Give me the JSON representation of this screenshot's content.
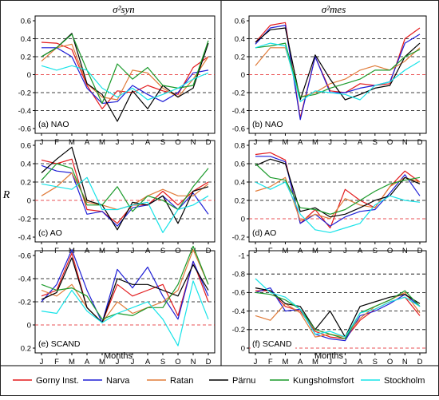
{
  "chart_data": {
    "type": "line",
    "column_titles": [
      "σ²syn",
      "σ²mes"
    ],
    "ylabel": "R",
    "xlabel": "Months",
    "months": [
      "J",
      "F",
      "M",
      "A",
      "M",
      "J",
      "J",
      "A",
      "S",
      "O",
      "N",
      "D"
    ],
    "legend": [
      {
        "name": "Gorny Inst.",
        "color": "#e31a1c"
      },
      {
        "name": "Narva",
        "color": "#1f1fd6"
      },
      {
        "name": "Ratan",
        "color": "#e07b39"
      },
      {
        "name": "Pärnu",
        "color": "#000000"
      },
      {
        "name": "Kungsholmsfort",
        "color": "#1a9a2a"
      },
      {
        "name": "Stockholm",
        "color": "#17e3e8"
      }
    ],
    "panels": [
      {
        "id": "a",
        "label": "(a) NAO",
        "ylim": [
          -0.6,
          0.6
        ],
        "ticks": [
          0.6,
          0.4,
          0.2,
          0,
          -0.2,
          -0.4,
          -0.6
        ],
        "tick_labels": [
          "0.6",
          "0.4",
          "0.2",
          "0",
          "-0.2",
          "-0.4",
          "-0.6"
        ],
        "invert": false,
        "series": [
          {
            "name": "Gorny Inst.",
            "values": [
              0.36,
              0.35,
              0.28,
              -0.12,
              -0.38,
              -0.18,
              -0.2,
              -0.12,
              -0.18,
              -0.22,
              0.08,
              0.2
            ]
          },
          {
            "name": "Narva",
            "values": [
              0.3,
              0.3,
              0.2,
              -0.15,
              -0.32,
              -0.3,
              -0.12,
              -0.22,
              -0.3,
              -0.2,
              0.02,
              0.05
            ]
          },
          {
            "name": "Ratan",
            "values": [
              0.15,
              0.3,
              0.34,
              -0.1,
              -0.25,
              -0.28,
              0.05,
              0.02,
              -0.15,
              -0.25,
              -0.05,
              0.2
            ]
          },
          {
            "name": "Pärnu",
            "values": [
              0.2,
              0.3,
              0.46,
              -0.1,
              -0.22,
              -0.52,
              -0.18,
              -0.38,
              -0.12,
              -0.25,
              -0.15,
              0.35
            ]
          },
          {
            "name": "Kungsholmsfort",
            "values": [
              0.2,
              0.3,
              0.45,
              0.05,
              -0.32,
              0.12,
              -0.05,
              0.08,
              -0.12,
              -0.15,
              -0.12,
              0.38
            ]
          },
          {
            "name": "Stockholm",
            "values": [
              0.1,
              0.05,
              0.1,
              0.05,
              -0.15,
              -0.25,
              -0.15,
              -0.28,
              -0.22,
              -0.15,
              -0.05,
              0.02
            ]
          }
        ]
      },
      {
        "id": "b",
        "label": "(b) NAO",
        "ylim": [
          -0.6,
          0.6
        ],
        "ticks": [
          0.6,
          0.4,
          0.2,
          0,
          -0.2,
          -0.4,
          -0.6
        ],
        "tick_labels": [
          "0.6",
          "0.4",
          "0.2",
          "0",
          "-0.2",
          "-0.4",
          "-0.6"
        ],
        "invert": false,
        "series": [
          {
            "name": "Gorny Inst.",
            "values": [
              0.36,
              0.55,
              0.58,
              -0.48,
              0.2,
              -0.18,
              -0.2,
              -0.1,
              -0.12,
              -0.1,
              0.4,
              0.52
            ]
          },
          {
            "name": "Narva",
            "values": [
              0.34,
              0.52,
              0.55,
              -0.5,
              0.2,
              -0.2,
              -0.2,
              -0.15,
              -0.12,
              -0.08,
              0.35,
              0.45
            ]
          },
          {
            "name": "Ratan",
            "values": [
              0.1,
              0.3,
              0.3,
              -0.25,
              -0.2,
              -0.1,
              -0.05,
              0.05,
              0.1,
              0.05,
              0.15,
              0.3
            ]
          },
          {
            "name": "Pärnu",
            "values": [
              0.36,
              0.5,
              0.52,
              -0.28,
              0.22,
              -0.05,
              -0.28,
              -0.22,
              -0.15,
              -0.12,
              0.2,
              0.35
            ]
          },
          {
            "name": "Kungsholmsfort",
            "values": [
              0.3,
              0.32,
              0.35,
              -0.25,
              -0.22,
              -0.15,
              -0.1,
              -0.05,
              0.05,
              0.05,
              0.2,
              0.28
            ]
          },
          {
            "name": "Stockholm",
            "values": [
              0.3,
              0.35,
              0.32,
              -0.3,
              -0.18,
              -0.2,
              -0.22,
              -0.28,
              -0.12,
              -0.08,
              0.05,
              0.15
            ]
          }
        ]
      },
      {
        "id": "c",
        "label": "(c) AO",
        "ylim": [
          -0.4,
          0.6
        ],
        "ticks": [
          0.6,
          0.4,
          0.2,
          0,
          -0.2,
          -0.4
        ],
        "tick_labels": [
          "0.6",
          "0.4",
          "0.2",
          "0",
          "-0.2",
          "-0.4"
        ],
        "invert": false,
        "series": [
          {
            "name": "Gorny Inst.",
            "values": [
              0.44,
              0.4,
              0.45,
              -0.1,
              -0.12,
              -0.25,
              -0.05,
              -0.05,
              0.1,
              -0.05,
              0.1,
              0.2
            ]
          },
          {
            "name": "Narva",
            "values": [
              0.38,
              0.32,
              0.3,
              -0.15,
              -0.12,
              -0.28,
              -0.08,
              -0.05,
              0.05,
              -0.1,
              0.08,
              -0.15
            ]
          },
          {
            "name": "Ratan",
            "values": [
              0.05,
              0.15,
              0.3,
              -0.02,
              -0.05,
              -0.1,
              -0.05,
              0.05,
              0.12,
              0.05,
              0.05,
              0.18
            ]
          },
          {
            "name": "Pärnu",
            "values": [
              0.3,
              0.45,
              0.58,
              0.0,
              -0.05,
              -0.32,
              -0.02,
              -0.05,
              0.05,
              -0.25,
              0.1,
              0.15
            ]
          },
          {
            "name": "Kungsholmsfort",
            "values": [
              0.22,
              0.4,
              0.35,
              -0.05,
              -0.05,
              0.15,
              -0.12,
              0.05,
              0.0,
              -0.1,
              0.15,
              0.35
            ]
          },
          {
            "name": "Stockholm",
            "values": [
              0.18,
              0.15,
              0.12,
              0.25,
              -0.1,
              -0.1,
              -0.05,
              -0.02,
              -0.35,
              -0.1,
              -0.05,
              0.05
            ]
          }
        ]
      },
      {
        "id": "d",
        "label": "(d) AO",
        "ylim": [
          -0.2,
          0.8
        ],
        "ticks": [
          0.8,
          0.6,
          0.4,
          0.2,
          0,
          -0.2
        ],
        "tick_labels": [
          "0.8",
          "0.6",
          "0.4",
          "0.2",
          "0",
          "-0.2"
        ],
        "invert": false,
        "series": [
          {
            "name": "Gorny Inst.",
            "values": [
              0.7,
              0.72,
              0.64,
              -0.05,
              0.1,
              -0.1,
              0.32,
              0.2,
              0.12,
              0.35,
              0.52,
              0.4
            ]
          },
          {
            "name": "Narva",
            "values": [
              0.68,
              0.68,
              0.62,
              -0.05,
              0.05,
              -0.08,
              0.02,
              0.08,
              0.1,
              0.28,
              0.48,
              0.25
            ]
          },
          {
            "name": "Ratan",
            "values": [
              0.3,
              0.35,
              0.45,
              -0.02,
              0.05,
              0.0,
              0.22,
              0.15,
              0.12,
              0.35,
              0.45,
              0.4
            ]
          },
          {
            "name": "Pärnu",
            "values": [
              0.58,
              0.65,
              0.6,
              0.08,
              0.12,
              0.02,
              0.05,
              0.12,
              0.2,
              0.25,
              0.45,
              0.38
            ]
          },
          {
            "name": "Kungsholmsfort",
            "values": [
              0.6,
              0.45,
              0.42,
              0.12,
              0.1,
              0.05,
              0.1,
              0.2,
              0.3,
              0.38,
              0.42,
              0.45
            ]
          },
          {
            "name": "Stockholm",
            "values": [
              0.4,
              0.32,
              0.4,
              0.05,
              -0.12,
              -0.15,
              -0.1,
              -0.05,
              0.15,
              0.25,
              0.2,
              0.18
            ]
          }
        ]
      },
      {
        "id": "e",
        "label": "(e) SCAND",
        "ylim": [
          -0.6,
          0.2
        ],
        "ticks": [
          -0.6,
          -0.4,
          -0.2,
          0,
          0.2
        ],
        "tick_labels": [
          "-0.6",
          "-0.4",
          "-0.2",
          "0",
          "0.2"
        ],
        "invert": true,
        "series": [
          {
            "name": "Gorny Inst.",
            "values": [
              -0.25,
              -0.3,
              -0.62,
              -0.15,
              -0.02,
              -0.35,
              -0.25,
              -0.3,
              -0.35,
              -0.08,
              -0.55,
              -0.2
            ]
          },
          {
            "name": "Narva",
            "values": [
              -0.2,
              -0.35,
              -0.65,
              -0.3,
              -0.02,
              -0.48,
              -0.32,
              -0.5,
              -0.25,
              -0.05,
              -0.55,
              -0.25
            ]
          },
          {
            "name": "Ratan",
            "values": [
              -0.3,
              -0.25,
              -0.35,
              -0.15,
              -0.02,
              -0.2,
              -0.1,
              -0.15,
              -0.2,
              -0.3,
              -0.65,
              -0.35
            ]
          },
          {
            "name": "Pärnu",
            "values": [
              -0.22,
              -0.28,
              -0.58,
              -0.15,
              -0.02,
              -0.4,
              -0.35,
              -0.35,
              -0.3,
              -0.25,
              -0.52,
              -0.3
            ]
          },
          {
            "name": "Kungsholmsfort",
            "values": [
              -0.35,
              -0.3,
              -0.32,
              -0.25,
              -0.05,
              -0.1,
              -0.08,
              -0.15,
              -0.15,
              -0.35,
              -0.68,
              -0.35
            ]
          },
          {
            "name": "Stockholm",
            "values": [
              -0.12,
              -0.1,
              -0.3,
              -0.12,
              -0.02,
              -0.1,
              -0.15,
              -0.2,
              -0.05,
              0.18,
              -0.38,
              -0.05
            ]
          }
        ]
      },
      {
        "id": "f",
        "label": "(f) SCAND",
        "ylim": [
          -1,
          0
        ],
        "ticks": [
          -1,
          -0.8,
          -0.6,
          -0.4,
          -0.2,
          0
        ],
        "tick_labels": [
          "-1",
          "-0.8",
          "-0.6",
          "-0.4",
          "-0.2",
          "0"
        ],
        "invert": true,
        "series": [
          {
            "name": "Gorny Inst.",
            "values": [
              -0.62,
              -0.62,
              -0.45,
              -0.4,
              -0.18,
              -0.12,
              -0.1,
              -0.3,
              -0.42,
              -0.5,
              -0.55,
              -0.35
            ]
          },
          {
            "name": "Narva",
            "values": [
              -0.6,
              -0.65,
              -0.4,
              -0.42,
              -0.15,
              -0.1,
              -0.08,
              -0.35,
              -0.4,
              -0.48,
              -0.58,
              -0.45
            ]
          },
          {
            "name": "Ratan",
            "values": [
              -0.35,
              -0.3,
              -0.48,
              -0.38,
              -0.12,
              -0.15,
              -0.12,
              -0.32,
              -0.45,
              -0.52,
              -0.6,
              -0.38
            ]
          },
          {
            "name": "Pärnu",
            "values": [
              -0.65,
              -0.62,
              -0.48,
              -0.45,
              -0.2,
              -0.4,
              -0.12,
              -0.45,
              -0.5,
              -0.55,
              -0.58,
              -0.48
            ]
          },
          {
            "name": "Kungsholmsfort",
            "values": [
              -0.6,
              -0.58,
              -0.52,
              -0.42,
              -0.2,
              -0.15,
              -0.1,
              -0.38,
              -0.45,
              -0.52,
              -0.62,
              -0.45
            ]
          },
          {
            "name": "Stockholm",
            "values": [
              -0.75,
              -0.6,
              -0.55,
              -0.42,
              -0.15,
              -0.18,
              -0.12,
              -0.38,
              -0.42,
              -0.5,
              -0.55,
              -0.45
            ]
          }
        ]
      }
    ]
  }
}
